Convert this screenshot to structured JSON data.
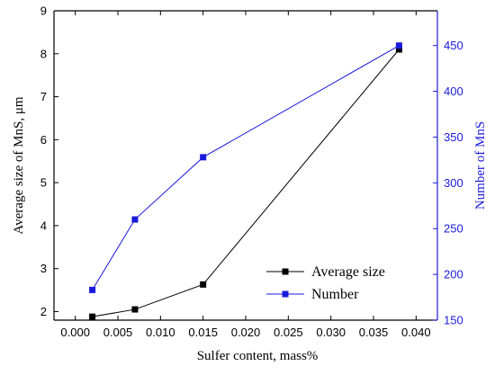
{
  "chart_data": {
    "type": "line",
    "xlabel": "Sulfer content, mass%",
    "ylabel_left": "Average size of MnS, μm",
    "ylabel_right": "Number of MnS",
    "x_ticks": [
      "0.000",
      "0.005",
      "0.010",
      "0.015",
      "0.020",
      "0.025",
      "0.030",
      "0.035",
      "0.040"
    ],
    "y_left_ticks": [
      "2",
      "3",
      "4",
      "5",
      "6",
      "7",
      "8",
      "9"
    ],
    "y_right_ticks": [
      "150",
      "200",
      "250",
      "300",
      "350",
      "400",
      "450"
    ],
    "xlim": [
      -0.0025,
      0.0425
    ],
    "ylim_left": [
      1.8,
      9
    ],
    "ylim_right": [
      150,
      488
    ],
    "grid": false,
    "legend_position": "bottom-right",
    "series": [
      {
        "name": "Average size",
        "axis": "left",
        "color": "#000000",
        "x": [
          0.002,
          0.007,
          0.015,
          0.038
        ],
        "y": [
          1.88,
          2.05,
          2.63,
          8.1
        ]
      },
      {
        "name": "Number",
        "axis": "right",
        "color": "#1a1adb",
        "x": [
          0.002,
          0.007,
          0.015,
          0.038
        ],
        "y": [
          183,
          260,
          328,
          450
        ]
      }
    ]
  }
}
